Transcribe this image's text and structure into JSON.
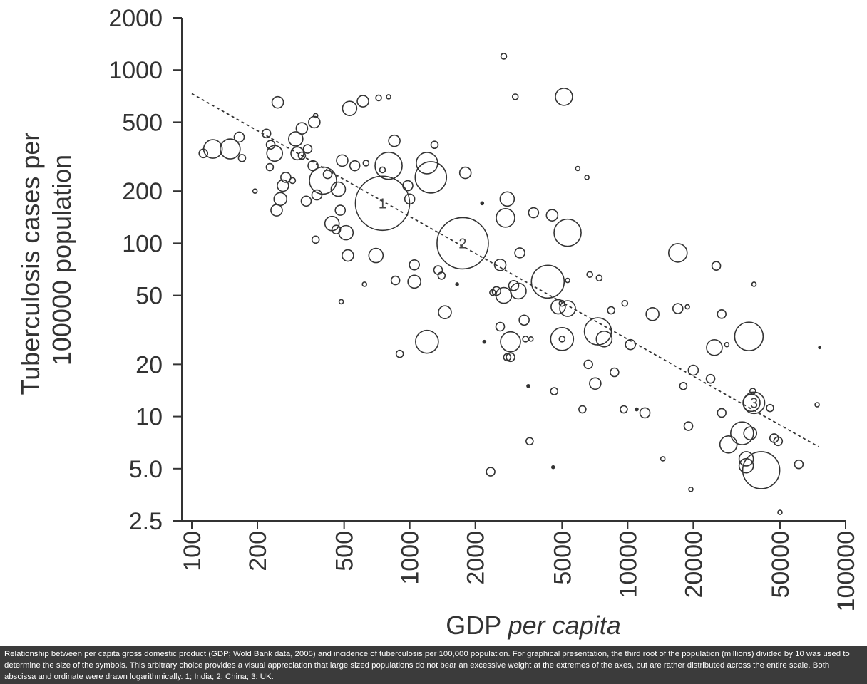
{
  "chart_data": {
    "type": "scatter",
    "title": "",
    "xlabel": "GDP",
    "xlabel_italic": "per capita",
    "ylabel_line1": "Tuberculosis cases per",
    "ylabel_line2": "100000 population",
    "x_scale": "log",
    "y_scale": "log",
    "xlim": [
      100,
      100000
    ],
    "ylim": [
      2.5,
      2000
    ],
    "x_ticks": [
      100,
      200,
      500,
      1000,
      2000,
      5000,
      10000,
      20000,
      50000,
      100000
    ],
    "x_tick_labels": [
      "100",
      "200",
      "500",
      "1000",
      "2000",
      "5000",
      "10000",
      "20000",
      "50000",
      "100000"
    ],
    "y_ticks": [
      2000,
      1000,
      500,
      200,
      100,
      50,
      20,
      10,
      5,
      2.5
    ],
    "y_tick_labels": [
      "2000",
      "1000",
      "500",
      "200",
      "100",
      "50",
      "20",
      "10",
      "5.0",
      "2.5"
    ],
    "trend_line": {
      "x": [
        100,
        75000
      ],
      "y": [
        730,
        6.7
      ],
      "style": "dotted"
    },
    "labelled_points": [
      {
        "label": "1",
        "x": 750,
        "y": 170
      },
      {
        "label": "2",
        "x": 1750,
        "y": 100
      },
      {
        "label": "3",
        "x": 38000,
        "y": 12
      }
    ],
    "points": [
      {
        "x": 750,
        "y": 170,
        "r": 38
      },
      {
        "x": 1750,
        "y": 100,
        "r": 36
      },
      {
        "x": 38000,
        "y": 12,
        "r": 15
      },
      {
        "x": 113,
        "y": 330,
        "r": 6
      },
      {
        "x": 125,
        "y": 350,
        "r": 13
      },
      {
        "x": 150,
        "y": 350,
        "r": 14
      },
      {
        "x": 165,
        "y": 410,
        "r": 7
      },
      {
        "x": 170,
        "y": 310,
        "r": 5
      },
      {
        "x": 195,
        "y": 200,
        "r": 3
      },
      {
        "x": 220,
        "y": 430,
        "r": 6
      },
      {
        "x": 230,
        "y": 370,
        "r": 6
      },
      {
        "x": 228,
        "y": 275,
        "r": 5
      },
      {
        "x": 240,
        "y": 330,
        "r": 11
      },
      {
        "x": 245,
        "y": 155,
        "r": 8
      },
      {
        "x": 248,
        "y": 650,
        "r": 8
      },
      {
        "x": 255,
        "y": 180,
        "r": 9
      },
      {
        "x": 262,
        "y": 215,
        "r": 8
      },
      {
        "x": 270,
        "y": 240,
        "r": 7
      },
      {
        "x": 290,
        "y": 230,
        "r": 4
      },
      {
        "x": 300,
        "y": 400,
        "r": 10
      },
      {
        "x": 305,
        "y": 330,
        "r": 9
      },
      {
        "x": 320,
        "y": 460,
        "r": 8
      },
      {
        "x": 320,
        "y": 320,
        "r": 5
      },
      {
        "x": 340,
        "y": 350,
        "r": 6
      },
      {
        "x": 335,
        "y": 175,
        "r": 7
      },
      {
        "x": 360,
        "y": 280,
        "r": 7
      },
      {
        "x": 365,
        "y": 500,
        "r": 8
      },
      {
        "x": 370,
        "y": 545,
        "r": 3
      },
      {
        "x": 370,
        "y": 105,
        "r": 5
      },
      {
        "x": 375,
        "y": 190,
        "r": 7
      },
      {
        "x": 400,
        "y": 230,
        "r": 19
      },
      {
        "x": 420,
        "y": 250,
        "r": 6
      },
      {
        "x": 440,
        "y": 130,
        "r": 10
      },
      {
        "x": 460,
        "y": 120,
        "r": 6
      },
      {
        "x": 470,
        "y": 205,
        "r": 10
      },
      {
        "x": 480,
        "y": 155,
        "r": 7
      },
      {
        "x": 490,
        "y": 300,
        "r": 8
      },
      {
        "x": 485,
        "y": 46,
        "r": 3
      },
      {
        "x": 510,
        "y": 115,
        "r": 10
      },
      {
        "x": 520,
        "y": 85,
        "r": 8
      },
      {
        "x": 530,
        "y": 600,
        "r": 10
      },
      {
        "x": 560,
        "y": 280,
        "r": 7
      },
      {
        "x": 610,
        "y": 660,
        "r": 8
      },
      {
        "x": 620,
        "y": 58,
        "r": 3
      },
      {
        "x": 630,
        "y": 290,
        "r": 4
      },
      {
        "x": 700,
        "y": 85,
        "r": 10
      },
      {
        "x": 720,
        "y": 690,
        "r": 4
      },
      {
        "x": 750,
        "y": 265,
        "r": 4
      },
      {
        "x": 800,
        "y": 280,
        "r": 19
      },
      {
        "x": 800,
        "y": 700,
        "r": 3
      },
      {
        "x": 850,
        "y": 390,
        "r": 8
      },
      {
        "x": 860,
        "y": 61,
        "r": 6
      },
      {
        "x": 900,
        "y": 23,
        "r": 5
      },
      {
        "x": 980,
        "y": 215,
        "r": 7
      },
      {
        "x": 1000,
        "y": 180,
        "r": 7
      },
      {
        "x": 1050,
        "y": 75,
        "r": 7
      },
      {
        "x": 1050,
        "y": 60,
        "r": 9
      },
      {
        "x": 1200,
        "y": 290,
        "r": 15
      },
      {
        "x": 1200,
        "y": 27,
        "r": 16
      },
      {
        "x": 1250,
        "y": 240,
        "r": 22
      },
      {
        "x": 1300,
        "y": 370,
        "r": 5
      },
      {
        "x": 1350,
        "y": 70,
        "r": 6
      },
      {
        "x": 1400,
        "y": 65,
        "r": 5
      },
      {
        "x": 1450,
        "y": 40,
        "r": 9
      },
      {
        "x": 1650,
        "y": 58,
        "r": 2
      },
      {
        "x": 1800,
        "y": 255,
        "r": 8
      },
      {
        "x": 2150,
        "y": 170,
        "r": 2
      },
      {
        "x": 2200,
        "y": 27,
        "r": 2
      },
      {
        "x": 2350,
        "y": 4.8,
        "r": 6
      },
      {
        "x": 2400,
        "y": 52,
        "r": 4
      },
      {
        "x": 2500,
        "y": 53,
        "r": 6
      },
      {
        "x": 2600,
        "y": 75,
        "r": 8
      },
      {
        "x": 2600,
        "y": 33,
        "r": 6
      },
      {
        "x": 2700,
        "y": 1200,
        "r": 4
      },
      {
        "x": 2700,
        "y": 50,
        "r": 11
      },
      {
        "x": 2750,
        "y": 140,
        "r": 13
      },
      {
        "x": 2800,
        "y": 180,
        "r": 10
      },
      {
        "x": 2800,
        "y": 22,
        "r": 5
      },
      {
        "x": 2900,
        "y": 27,
        "r": 14
      },
      {
        "x": 2900,
        "y": 22,
        "r": 6
      },
      {
        "x": 3000,
        "y": 57,
        "r": 7
      },
      {
        "x": 3050,
        "y": 700,
        "r": 4
      },
      {
        "x": 3150,
        "y": 53,
        "r": 11
      },
      {
        "x": 3200,
        "y": 88,
        "r": 7
      },
      {
        "x": 3350,
        "y": 36,
        "r": 7
      },
      {
        "x": 3400,
        "y": 28,
        "r": 4
      },
      {
        "x": 3500,
        "y": 15,
        "r": 2
      },
      {
        "x": 3550,
        "y": 7.2,
        "r": 5
      },
      {
        "x": 3600,
        "y": 28,
        "r": 3
      },
      {
        "x": 3700,
        "y": 150,
        "r": 7
      },
      {
        "x": 4300,
        "y": 60,
        "r": 23
      },
      {
        "x": 4500,
        "y": 145,
        "r": 8
      },
      {
        "x": 4550,
        "y": 5.1,
        "r": 2
      },
      {
        "x": 4600,
        "y": 14,
        "r": 5
      },
      {
        "x": 4800,
        "y": 43,
        "r": 10
      },
      {
        "x": 5000,
        "y": 45,
        "r": 4
      },
      {
        "x": 5000,
        "y": 28,
        "r": 16
      },
      {
        "x": 5000,
        "y": 28,
        "r": 4
      },
      {
        "x": 5100,
        "y": 700,
        "r": 12
      },
      {
        "x": 5300,
        "y": 61,
        "r": 3
      },
      {
        "x": 5300,
        "y": 115,
        "r": 19
      },
      {
        "x": 5300,
        "y": 42,
        "r": 11
      },
      {
        "x": 5900,
        "y": 270,
        "r": 3
      },
      {
        "x": 6200,
        "y": 11,
        "r": 5
      },
      {
        "x": 6500,
        "y": 240,
        "r": 3
      },
      {
        "x": 6600,
        "y": 20,
        "r": 6
      },
      {
        "x": 6700,
        "y": 66,
        "r": 4
      },
      {
        "x": 7100,
        "y": 15.5,
        "r": 8
      },
      {
        "x": 7300,
        "y": 31,
        "r": 19
      },
      {
        "x": 7400,
        "y": 63,
        "r": 4
      },
      {
        "x": 7800,
        "y": 28,
        "r": 11
      },
      {
        "x": 8400,
        "y": 41,
        "r": 5
      },
      {
        "x": 8700,
        "y": 18,
        "r": 6
      },
      {
        "x": 9600,
        "y": 11,
        "r": 5
      },
      {
        "x": 9700,
        "y": 45,
        "r": 4
      },
      {
        "x": 10300,
        "y": 26,
        "r": 7
      },
      {
        "x": 11000,
        "y": 11,
        "r": 2
      },
      {
        "x": 12000,
        "y": 10.5,
        "r": 7
      },
      {
        "x": 13000,
        "y": 39,
        "r": 9
      },
      {
        "x": 14500,
        "y": 5.7,
        "r": 3
      },
      {
        "x": 17000,
        "y": 88,
        "r": 13
      },
      {
        "x": 17000,
        "y": 42,
        "r": 7
      },
      {
        "x": 18000,
        "y": 15,
        "r": 5
      },
      {
        "x": 18800,
        "y": 43,
        "r": 3
      },
      {
        "x": 19000,
        "y": 8.8,
        "r": 6
      },
      {
        "x": 19500,
        "y": 3.8,
        "r": 3
      },
      {
        "x": 20000,
        "y": 18.5,
        "r": 7
      },
      {
        "x": 24000,
        "y": 16.5,
        "r": 6
      },
      {
        "x": 25000,
        "y": 25,
        "r": 11
      },
      {
        "x": 25500,
        "y": 74,
        "r": 6
      },
      {
        "x": 27000,
        "y": 39,
        "r": 6
      },
      {
        "x": 27000,
        "y": 10.5,
        "r": 6
      },
      {
        "x": 28500,
        "y": 26,
        "r": 3
      },
      {
        "x": 29000,
        "y": 6.9,
        "r": 12
      },
      {
        "x": 33500,
        "y": 8,
        "r": 16
      },
      {
        "x": 35000,
        "y": 5.2,
        "r": 10
      },
      {
        "x": 35000,
        "y": 5.7,
        "r": 10
      },
      {
        "x": 36000,
        "y": 29,
        "r": 20
      },
      {
        "x": 36500,
        "y": 8,
        "r": 9
      },
      {
        "x": 37000,
        "y": 12,
        "r": 12
      },
      {
        "x": 37500,
        "y": 14,
        "r": 4
      },
      {
        "x": 38000,
        "y": 58,
        "r": 3
      },
      {
        "x": 41000,
        "y": 4.9,
        "r": 26
      },
      {
        "x": 45000,
        "y": 11.2,
        "r": 5
      },
      {
        "x": 47000,
        "y": 7.5,
        "r": 6
      },
      {
        "x": 49000,
        "y": 7.2,
        "r": 6
      },
      {
        "x": 50000,
        "y": 2.8,
        "r": 3
      },
      {
        "x": 61000,
        "y": 5.3,
        "r": 6
      },
      {
        "x": 74000,
        "y": 11.7,
        "r": 3
      },
      {
        "x": 76000,
        "y": 25,
        "r": 1.5
      }
    ]
  },
  "caption": "Relationship between per capita gross domestic product (GDP; Wold Bank data, 2005) and incidence of tuberculosis per 100,000 population. For graphical presentation, the third root of the population (millions) divided by 10 was used to determine the size of the symbols. This arbitrary choice provides a visual appreciation that large sized populations do not bear an excessive weight at the extremes of the axes, but are rather distributed across the entire scale. Both abscissa and ordinate were drawn logarithmically. 1; India; 2: China; 3: UK."
}
